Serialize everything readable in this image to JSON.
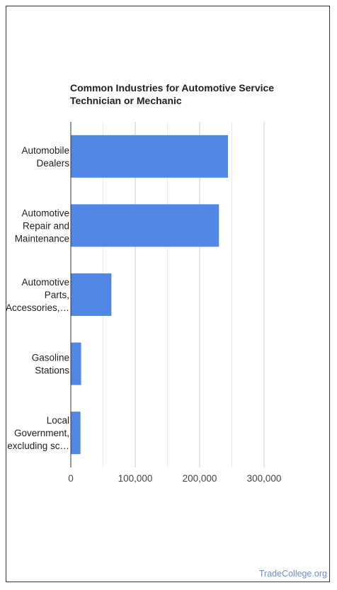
{
  "chart_data": {
    "type": "bar",
    "orientation": "horizontal",
    "title_lines": [
      "Common Industries for Automotive Service",
      "Technician or Mechanic"
    ],
    "categories": [
      [
        "Automobile",
        "Dealers"
      ],
      [
        "Automotive",
        "Repair and",
        "Maintenance"
      ],
      [
        "Automotive",
        "Parts,",
        "Accessories,…"
      ],
      [
        "Gasoline",
        "Stations"
      ],
      [
        "Local",
        "Government,",
        "excluding sc…"
      ]
    ],
    "values": [
      244000,
      230000,
      63000,
      16000,
      15000
    ],
    "xlim": [
      0,
      300000
    ],
    "ticks": [
      0,
      100000,
      200000,
      300000
    ],
    "tick_labels": [
      "0",
      "100,000",
      "200,000",
      "300,000"
    ],
    "grid": true,
    "bar_color": "#5287e5",
    "xlabel": "",
    "ylabel": ""
  },
  "watermark": "TradeCollege.org"
}
